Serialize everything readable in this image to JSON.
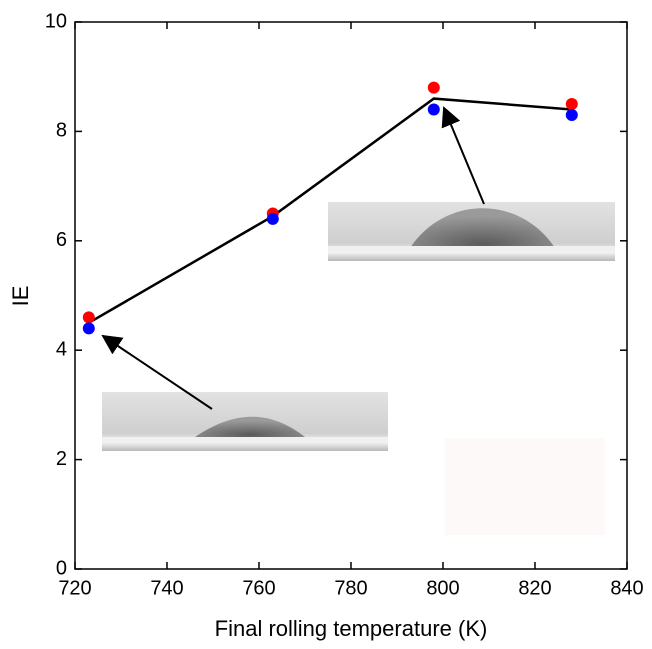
{
  "chart_data": {
    "type": "scatter",
    "x_label": "Final rolling temperature (K)",
    "y_label": "IE",
    "x": [
      723,
      763,
      798,
      828
    ],
    "series": [
      {
        "color": "#ff0000",
        "values": [
          4.6,
          6.5,
          8.8,
          8.5
        ]
      },
      {
        "color": "#0000ff",
        "values": [
          4.4,
          6.4,
          8.4,
          8.3
        ]
      },
      {
        "type": "line",
        "color": "#000000",
        "values": [
          4.5,
          6.45,
          8.6,
          8.4
        ]
      }
    ],
    "xlim": [
      720,
      840
    ],
    "xticks": [
      720,
      740,
      760,
      780,
      800,
      820,
      840
    ],
    "ylim": [
      0,
      10
    ],
    "yticks": [
      0,
      2,
      4,
      6,
      8,
      10
    ]
  }
}
